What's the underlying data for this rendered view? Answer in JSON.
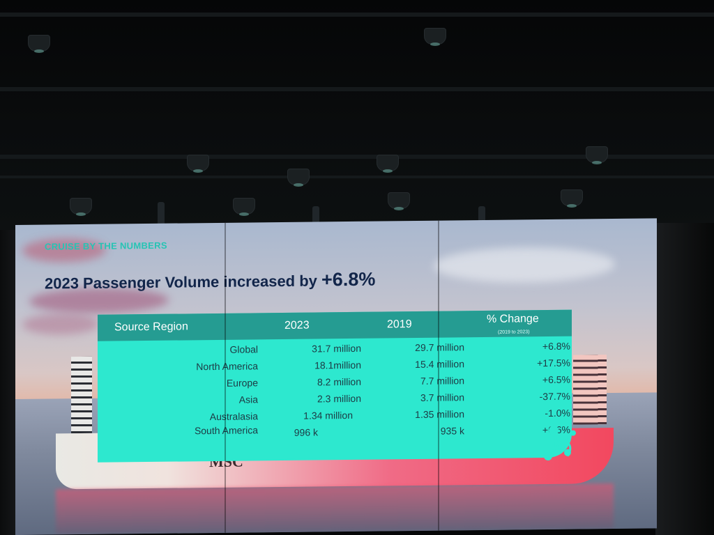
{
  "slide": {
    "kicker": "CRUISE BY THE NUMBERS",
    "headline_prefix": "2023 Passenger Volume increased by ",
    "headline_value": "+6.8%",
    "ship_name": "MSC"
  },
  "table": {
    "headers": {
      "region": "Source Region",
      "y2023": "2023",
      "y2019": "2019",
      "change": "% Change",
      "change_sub": "(2019 to 2023)"
    },
    "rows": [
      {
        "region": "Global",
        "v2023": "31.7 million",
        "v2019": "29.7 million",
        "change": "+6.8%"
      },
      {
        "region": "North America",
        "v2023": "18.1million",
        "v2019": "15.4 million",
        "change": "+17.5%"
      },
      {
        "region": "Europe",
        "v2023": "8.2 million",
        "v2019": "7.7 million",
        "change": "+6.5%"
      },
      {
        "region": "Asia",
        "v2023": "2.3 million",
        "v2019": "3.7 million",
        "change": "-37.7%"
      },
      {
        "region": "Australasia",
        "v2023": "1.34 million",
        "v2019": "1.35 million",
        "change": "-1.0%"
      },
      {
        "region": "South America",
        "v2023": "996 k",
        "v2019": "935 k",
        "change": "+6.6%"
      }
    ]
  },
  "colors": {
    "kicker": "#27c4b4",
    "headline": "#12254a",
    "table_body": "#2de8cf",
    "table_header": "#259c92"
  }
}
